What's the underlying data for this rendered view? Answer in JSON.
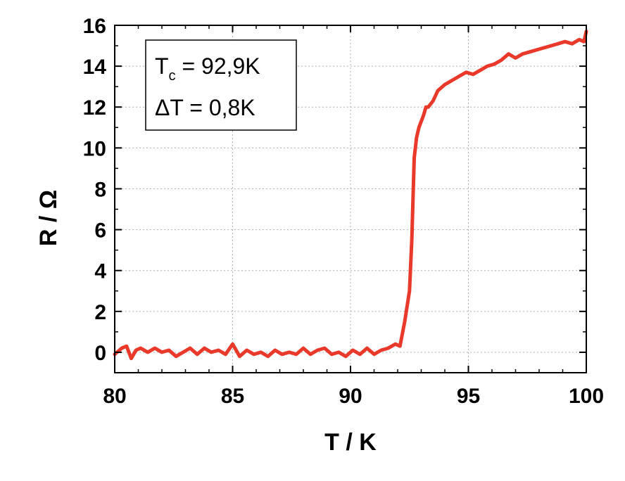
{
  "chart_data": {
    "type": "line",
    "xlabel": "T / K",
    "ylabel": "R / Ω",
    "xlim": [
      80,
      100
    ],
    "ylim": [
      -1,
      16
    ],
    "xticks": [
      80,
      85,
      90,
      95,
      100
    ],
    "yticks": [
      0,
      2,
      4,
      6,
      8,
      10,
      12,
      14,
      16
    ],
    "grid": true,
    "legend": "none",
    "annotation": {
      "line1_main": "T",
      "line1_sub": "c",
      "line1_rest": " = 92,9K",
      "line2": "ΔT = 0,8K",
      "placement": "top-left"
    },
    "series": [
      {
        "color": "#e8392b",
        "x": [
          80.0,
          80.3,
          80.5,
          80.7,
          80.9,
          81.1,
          81.4,
          81.7,
          82.0,
          82.3,
          82.6,
          82.9,
          83.2,
          83.5,
          83.8,
          84.1,
          84.4,
          84.7,
          85.0,
          85.3,
          85.6,
          85.9,
          86.2,
          86.5,
          86.8,
          87.1,
          87.4,
          87.7,
          88.0,
          88.3,
          88.6,
          88.9,
          89.2,
          89.5,
          89.8,
          90.1,
          90.4,
          90.7,
          91.0,
          91.3,
          91.6,
          91.9,
          92.1,
          92.3,
          92.5,
          92.6,
          92.7,
          92.8,
          92.9,
          93.0,
          93.1,
          93.2,
          93.3,
          93.5,
          93.7,
          94.0,
          94.3,
          94.6,
          94.9,
          95.2,
          95.5,
          95.8,
          96.1,
          96.4,
          96.7,
          97.0,
          97.3,
          97.6,
          97.9,
          98.2,
          98.5,
          98.8,
          99.1,
          99.4,
          99.7,
          99.9,
          100.0
        ],
        "y": [
          -0.1,
          0.2,
          0.3,
          -0.3,
          0.1,
          0.2,
          0.0,
          0.2,
          0.0,
          0.1,
          -0.2,
          0.0,
          0.2,
          -0.1,
          0.2,
          0.0,
          0.1,
          -0.1,
          0.4,
          -0.2,
          0.1,
          -0.1,
          0.0,
          -0.2,
          0.1,
          -0.1,
          0.0,
          -0.1,
          0.2,
          -0.1,
          0.1,
          0.2,
          -0.1,
          0.0,
          -0.2,
          0.1,
          -0.1,
          0.2,
          -0.1,
          0.1,
          0.2,
          0.4,
          0.3,
          1.5,
          3.0,
          5.5,
          9.5,
          10.5,
          11.0,
          11.3,
          11.6,
          12.0,
          12.0,
          12.3,
          12.8,
          13.1,
          13.3,
          13.5,
          13.7,
          13.6,
          13.8,
          14.0,
          14.1,
          14.3,
          14.6,
          14.4,
          14.6,
          14.7,
          14.8,
          14.9,
          15.0,
          15.1,
          15.2,
          15.1,
          15.3,
          15.2,
          15.7
        ]
      }
    ]
  }
}
